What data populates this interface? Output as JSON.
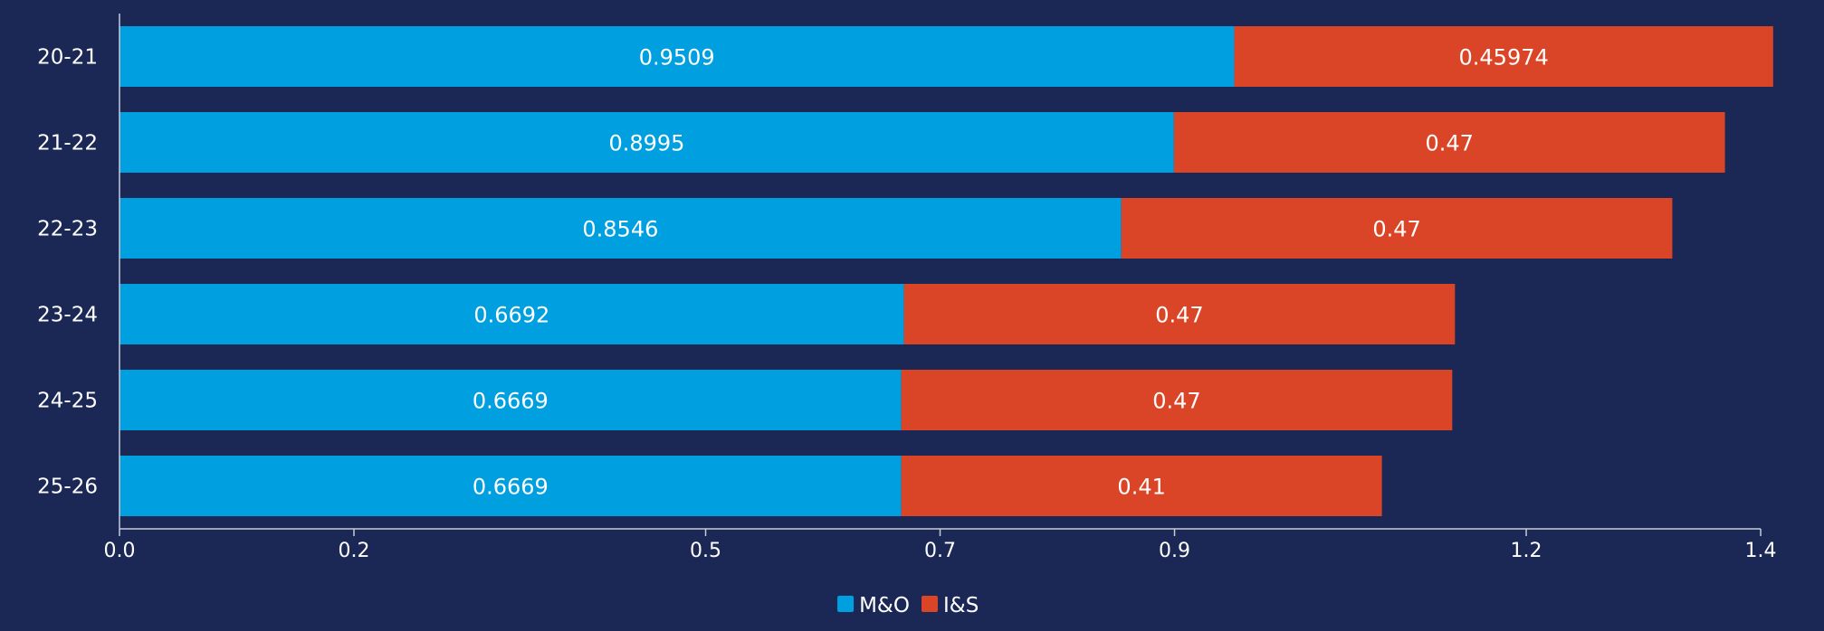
{
  "chart_data": {
    "type": "bar",
    "orientation": "horizontal",
    "stacked": true,
    "categories": [
      "20-21",
      "21-22",
      "22-23",
      "23-24",
      "24-25",
      "25-26"
    ],
    "series": [
      {
        "name": "M&O",
        "values": [
          0.9509,
          0.8995,
          0.8546,
          0.6692,
          0.6669,
          0.6669
        ],
        "color": "#009fe0"
      },
      {
        "name": "I&S",
        "values": [
          0.45974,
          0.47,
          0.47,
          0.47,
          0.47,
          0.41
        ],
        "color": "#db4527"
      }
    ],
    "data_labels": [
      [
        "0.9509",
        "0.8995",
        "0.8546",
        "0.6692",
        "0.6669",
        "0.6669"
      ],
      [
        "0.45974",
        "0.47",
        "0.47",
        "0.47",
        "0.47",
        "0.41"
      ]
    ],
    "x_ticks": [
      0.0,
      0.2,
      0.5,
      0.7,
      0.9,
      1.2,
      1.4
    ],
    "x_tick_labels": [
      "0.0",
      "0.2",
      "0.5",
      "0.7",
      "0.9",
      "1.2",
      "1.4"
    ],
    "xlim": [
      0,
      1.41
    ],
    "title": "",
    "xlabel": "",
    "ylabel": "",
    "grid": false,
    "legend_position": "bottom-center",
    "background": "#1b2755",
    "text_color": "#ffffff",
    "axis_color": "#c8ccd8"
  }
}
